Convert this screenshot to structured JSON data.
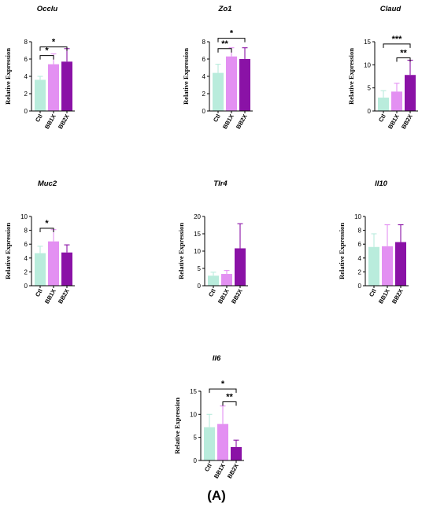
{
  "figure": {
    "label": "(A)"
  },
  "colors": {
    "Ctl": "#b9ecdc",
    "BB1X": "#e390f2",
    "BB2X": "#8a12a6",
    "axis": "#000000",
    "err_Ctl": "#b9ecdc",
    "err_BB1X": "#e390f2",
    "err_BB2X": "#8a12a6"
  },
  "chart_data": [
    {
      "type": "bar",
      "title": "Occlu",
      "ylabel": "Relative Expression",
      "categories": [
        "Ctl",
        "BB1X",
        "BB2X"
      ],
      "values": [
        3.6,
        5.4,
        5.7
      ],
      "errors": [
        0.4,
        1.2,
        1.5
      ],
      "ylim": [
        0,
        8
      ],
      "yticks": [
        "0",
        "2",
        "4",
        "6",
        "8"
      ],
      "ytick_values": [
        0,
        2,
        4,
        6,
        8
      ],
      "significance": [
        {
          "from": 0,
          "to": 1,
          "label": "*",
          "level": 6.4
        },
        {
          "from": 0,
          "to": 2,
          "label": "*",
          "level": 7.4
        }
      ]
    },
    {
      "type": "bar",
      "title": "Zo1",
      "ylabel": "Relative Expression",
      "categories": [
        "Ctl",
        "BB1X",
        "BB2X"
      ],
      "values": [
        4.4,
        6.3,
        6.0
      ],
      "errors": [
        1.0,
        1.0,
        1.3
      ],
      "ylim": [
        0,
        8
      ],
      "yticks": [
        "0",
        "2",
        "4",
        "6",
        "8"
      ],
      "ytick_values": [
        0,
        2,
        4,
        6,
        8
      ],
      "significance": [
        {
          "from": 0,
          "to": 1,
          "label": "**",
          "level": 7.2
        },
        {
          "from": 0,
          "to": 2,
          "label": "*",
          "level": 8.4
        }
      ]
    },
    {
      "type": "bar",
      "title": "Claud",
      "ylabel": "Relative Expression",
      "categories": [
        "Ctl",
        "BB1X",
        "BB2X"
      ],
      "values": [
        2.9,
        4.2,
        7.8
      ],
      "errors": [
        1.5,
        1.8,
        3.2
      ],
      "ylim": [
        0,
        15
      ],
      "yticks": [
        "0",
        "5",
        "10",
        "15"
      ],
      "ytick_values": [
        0,
        5,
        10,
        15
      ],
      "significance": [
        {
          "from": 1,
          "to": 2,
          "label": "**",
          "level": 11.5
        },
        {
          "from": 0,
          "to": 2,
          "label": "***",
          "level": 14.5
        }
      ]
    },
    {
      "type": "bar",
      "title": "Muc2",
      "ylabel": "Relative Expression",
      "categories": [
        "Ctl",
        "BB1X",
        "BB2X"
      ],
      "values": [
        4.7,
        6.4,
        4.8
      ],
      "errors": [
        1.0,
        1.7,
        1.1
      ],
      "ylim": [
        0,
        10
      ],
      "yticks": [
        "0",
        "2",
        "4",
        "6",
        "8",
        "10"
      ],
      "ytick_values": [
        0,
        2,
        4,
        6,
        8,
        10
      ],
      "significance": [
        {
          "from": 0,
          "to": 1,
          "label": "*",
          "level": 8.3
        }
      ]
    },
    {
      "type": "bar",
      "title": "Tlr4",
      "ylabel": "Relative Expression",
      "categories": [
        "Ctl",
        "BB1X",
        "BB2X"
      ],
      "values": [
        2.9,
        3.4,
        10.8
      ],
      "errors": [
        1.0,
        1.0,
        7.1
      ],
      "ylim": [
        0,
        20
      ],
      "yticks": [
        "0",
        "5",
        "10",
        "15",
        "20"
      ],
      "ytick_values": [
        0,
        5,
        10,
        15,
        20
      ],
      "significance": []
    },
    {
      "type": "bar",
      "title": "Il10",
      "ylabel": "Relative Expression",
      "categories": [
        "Ctl",
        "BB1X",
        "BB2X"
      ],
      "values": [
        5.6,
        5.7,
        6.3
      ],
      "errors": [
        1.9,
        3.1,
        2.5
      ],
      "ylim": [
        0,
        10
      ],
      "yticks": [
        "0",
        "2",
        "4",
        "6",
        "8",
        "10"
      ],
      "ytick_values": [
        0,
        2,
        4,
        6,
        8,
        10
      ],
      "significance": []
    },
    {
      "type": "bar",
      "title": "Il6",
      "ylabel": "Relative Expression",
      "categories": [
        "Ctl",
        "BB1X",
        "BB2X"
      ],
      "values": [
        7.2,
        7.9,
        2.9
      ],
      "errors": [
        2.8,
        3.9,
        1.5
      ],
      "ylim": [
        0,
        15
      ],
      "yticks": [
        "0",
        "5",
        "10",
        "15"
      ],
      "ytick_values": [
        0,
        5,
        10,
        15
      ],
      "significance": [
        {
          "from": 1,
          "to": 2,
          "label": "**",
          "level": 12.7
        },
        {
          "from": 0,
          "to": 2,
          "label": "*",
          "level": 15.5
        }
      ]
    }
  ]
}
